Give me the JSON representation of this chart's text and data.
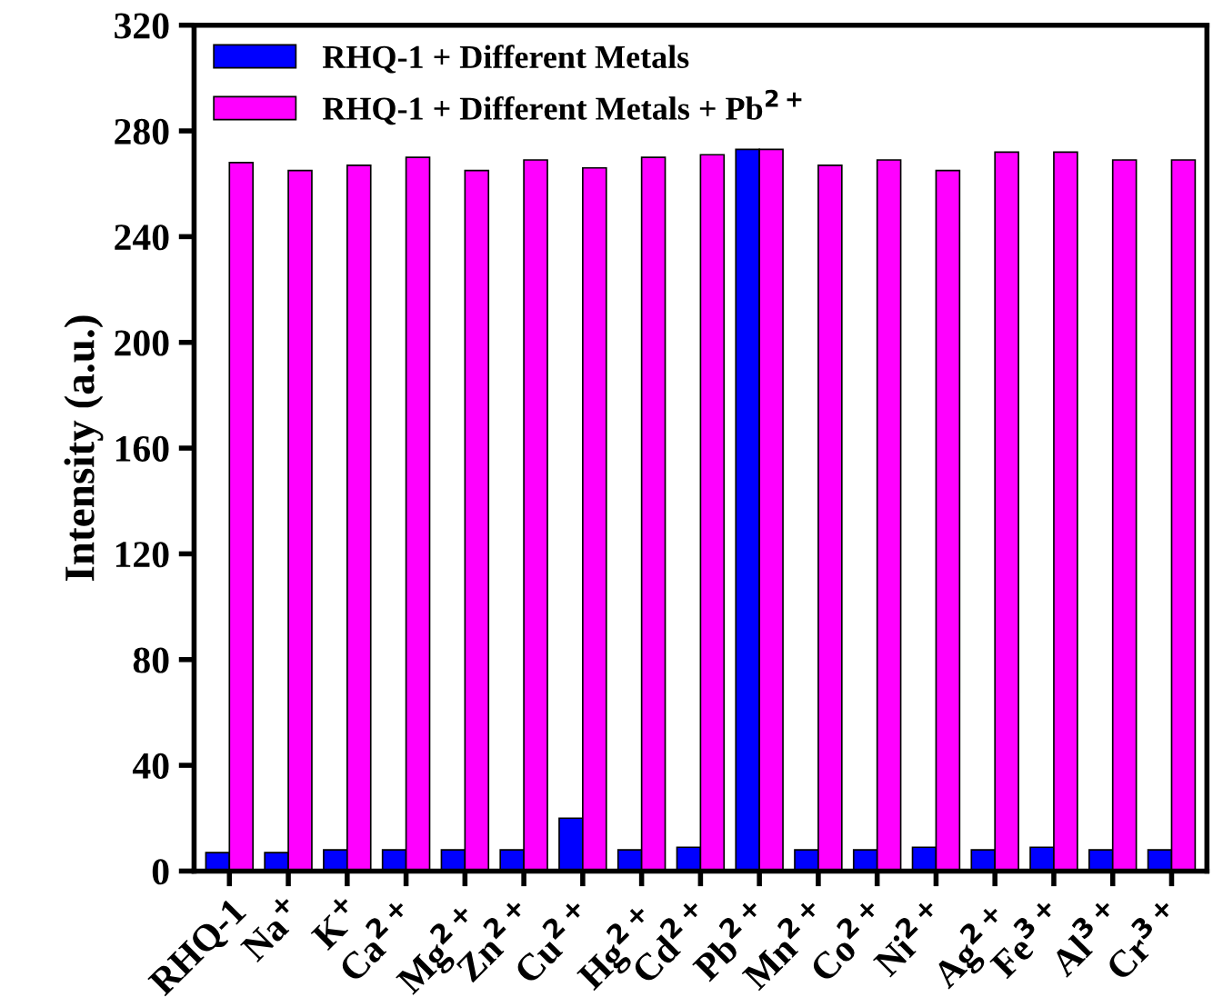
{
  "chart_data": {
    "type": "bar",
    "ylabel": "Intensity (a.u.)",
    "categories": [
      "RHQ-1",
      "Na$^{+}$",
      "K$^{+}$",
      "Ca$^{2+}$",
      "Mg$^{2+}$",
      "Zn$^{2+}$",
      "Cu$^{2+}$",
      "Hg$^{2+}$",
      "Cd$^{2+}$",
      "Pb$^{2+}$",
      "Mn$^{2+}$",
      "Co$^{2+}$",
      "Ni$^{2+}$",
      "Ag$^{2+}$",
      "Fe$^{3+}$",
      "Al$^{3+}$",
      "Cr$^{3+}$"
    ],
    "series": [
      {
        "name": "RHQ-1 + Different Metals",
        "color": "#0000ff",
        "values": [
          7,
          7,
          8,
          8,
          8,
          8,
          20,
          8,
          9,
          273,
          8,
          8,
          9,
          8,
          9,
          8,
          8
        ]
      },
      {
        "name": "RHQ-1 + Different Metals + Pb$^{2+}$",
        "color": "#ff00ff",
        "values": [
          268,
          265,
          267,
          270,
          265,
          269,
          266,
          270,
          271,
          273,
          267,
          269,
          265,
          272,
          272,
          269,
          269
        ]
      }
    ],
    "ylim": [
      0,
      320
    ],
    "yticks": [
      0,
      40,
      80,
      120,
      160,
      200,
      240,
      280,
      320
    ],
    "legend": "top left",
    "grid": false
  }
}
